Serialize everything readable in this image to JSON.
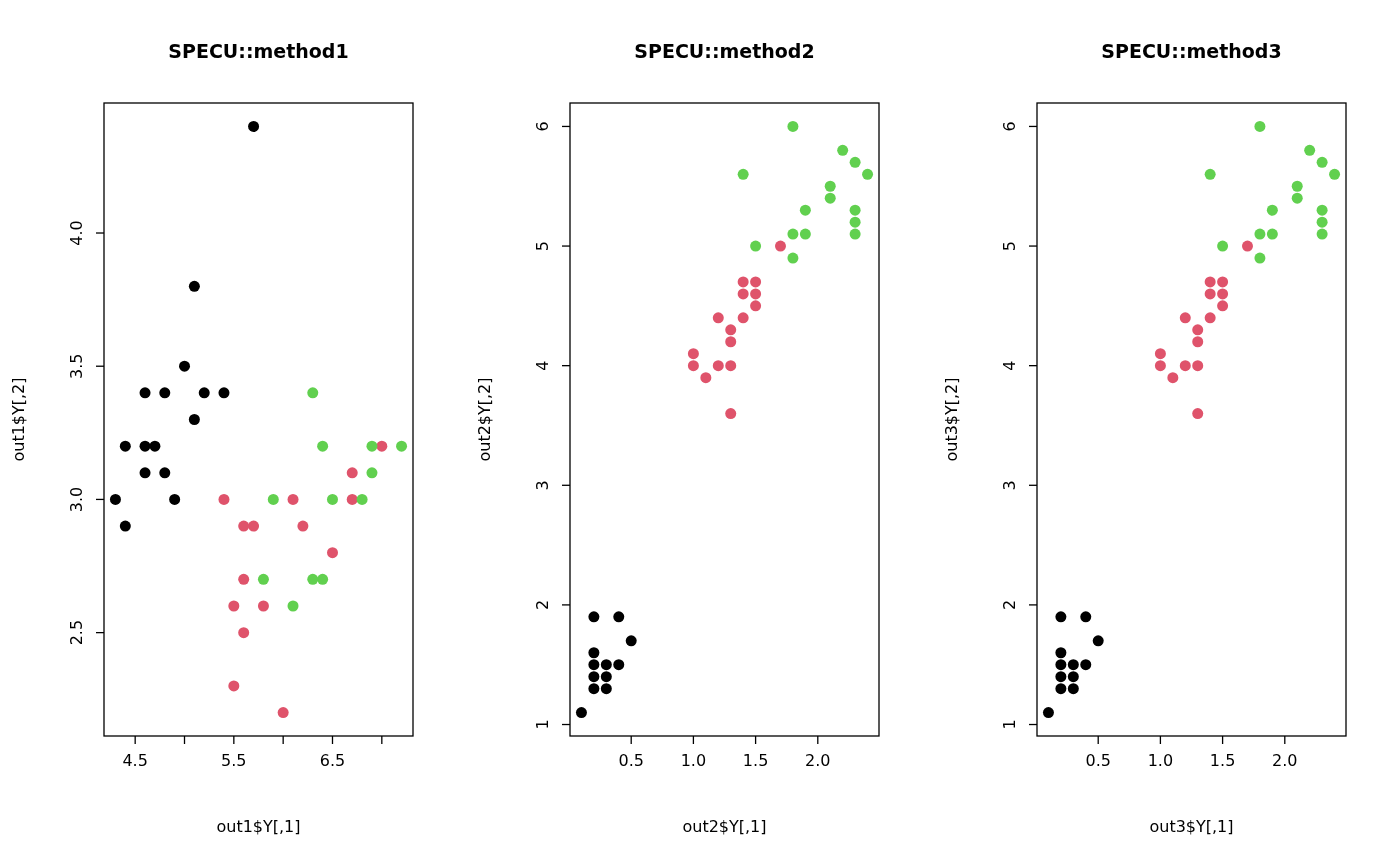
{
  "chart_data": [
    {
      "type": "scatter",
      "title": "SPECU::method1",
      "xlabel": "out1$Y[,1]",
      "ylabel": "out1$Y[,2]",
      "marker": "circle",
      "xlim": [
        4.184,
        7.316
      ],
      "ylim": [
        2.112,
        4.488
      ],
      "xticks": [
        4.5,
        {
          "value": 5.0,
          "label": null
        },
        5.5,
        {
          "value": 6.0,
          "label": null
        },
        6.5,
        {
          "value": 7.0,
          "label": null
        }
      ],
      "yticks": [
        2.5,
        {
          "value": 3,
          "label": "3.0"
        },
        3.5,
        {
          "value": 4,
          "label": "4.0"
        }
      ],
      "series": [
        {
          "color": "#000000",
          "x": [
            4.3,
            4.4,
            4.4,
            4.6,
            4.6,
            4.7,
            4.6,
            4.8,
            4.8,
            4.9,
            5.0,
            5.1,
            5.1,
            5.2,
            5.4,
            5.7
          ],
          "values": [
            3.0,
            3.2,
            2.9,
            3.4,
            3.2,
            3.2,
            3.1,
            3.4,
            3.1,
            3.0,
            3.5,
            3.8,
            3.3,
            3.4,
            3.4,
            4.4
          ]
        },
        {
          "color": "#df536b",
          "x": [
            5.4,
            5.6,
            5.7,
            5.6,
            5.5,
            5.8,
            5.6,
            5.5,
            6.0,
            6.1,
            6.2,
            6.5,
            6.7,
            6.7,
            7.0
          ],
          "values": [
            3.0,
            2.9,
            2.9,
            2.7,
            2.6,
            2.6,
            2.5,
            2.3,
            2.2,
            3.0,
            2.9,
            2.8,
            3.1,
            3.0,
            3.2
          ]
        },
        {
          "color": "#61d04f",
          "x": [
            5.8,
            5.9,
            6.1,
            6.3,
            6.3,
            6.4,
            6.4,
            6.5,
            6.8,
            6.9,
            6.9,
            7.2
          ],
          "values": [
            2.7,
            3.0,
            2.6,
            3.4,
            2.7,
            2.7,
            3.2,
            3.0,
            3.0,
            3.2,
            3.1,
            3.2
          ]
        }
      ]
    },
    {
      "type": "scatter",
      "title": "SPECU::method2",
      "xlabel": "out2$Y[,1]",
      "ylabel": "out2$Y[,2]",
      "marker": "circle",
      "xlim": [
        0.008,
        2.492
      ],
      "ylim": [
        0.904,
        6.196
      ],
      "xticks": [
        0.5,
        {
          "value": 1,
          "label": "1.0"
        },
        1.5,
        {
          "value": 2,
          "label": "2.0"
        }
      ],
      "yticks": [
        1,
        2,
        3,
        4,
        5,
        6
      ],
      "series": [
        {
          "color": "#000000",
          "x": [
            0.1,
            0.2,
            0.4,
            0.5,
            0.2,
            0.2,
            0.3,
            0.4,
            0.2,
            0.3,
            0.2,
            0.3
          ],
          "values": [
            1.1,
            1.9,
            1.9,
            1.7,
            1.6,
            1.5,
            1.5,
            1.5,
            1.4,
            1.4,
            1.3,
            1.3
          ]
        },
        {
          "color": "#df536b",
          "x": [
            1.0,
            1.0,
            1.1,
            1.2,
            1.2,
            1.3,
            1.3,
            1.3,
            1.3,
            1.4,
            1.4,
            1.4,
            1.5,
            1.5,
            1.5,
            1.7
          ],
          "values": [
            4.1,
            4.0,
            3.9,
            4.4,
            4.0,
            4.3,
            4.2,
            4.0,
            3.6,
            4.7,
            4.6,
            4.4,
            4.7,
            4.6,
            4.5,
            5.0
          ]
        },
        {
          "color": "#61d04f",
          "x": [
            1.4,
            1.5,
            1.8,
            1.8,
            1.8,
            1.9,
            1.9,
            2.1,
            2.1,
            2.2,
            2.3,
            2.3,
            2.3,
            2.3,
            2.4
          ],
          "values": [
            5.6,
            5.0,
            6.0,
            5.1,
            4.9,
            5.3,
            5.1,
            5.5,
            5.4,
            5.8,
            5.7,
            5.3,
            5.2,
            5.1,
            5.6
          ]
        }
      ]
    },
    {
      "type": "scatter",
      "title": "SPECU::method3",
      "xlabel": "out3$Y[,1]",
      "ylabel": "out3$Y[,2]",
      "marker": "circle",
      "xlim": [
        0.008,
        2.492
      ],
      "ylim": [
        0.904,
        6.196
      ],
      "xticks": [
        0.5,
        {
          "value": 1,
          "label": "1.0"
        },
        1.5,
        {
          "value": 2,
          "label": "2.0"
        }
      ],
      "yticks": [
        1,
        2,
        3,
        4,
        5,
        6
      ],
      "series": [
        {
          "color": "#000000",
          "x": [
            0.1,
            0.2,
            0.4,
            0.5,
            0.2,
            0.2,
            0.3,
            0.4,
            0.2,
            0.3,
            0.2,
            0.3
          ],
          "values": [
            1.1,
            1.9,
            1.9,
            1.7,
            1.6,
            1.5,
            1.5,
            1.5,
            1.4,
            1.4,
            1.3,
            1.3
          ]
        },
        {
          "color": "#df536b",
          "x": [
            1.0,
            1.0,
            1.1,
            1.2,
            1.2,
            1.3,
            1.3,
            1.3,
            1.3,
            1.4,
            1.4,
            1.4,
            1.5,
            1.5,
            1.5,
            1.7
          ],
          "values": [
            4.1,
            4.0,
            3.9,
            4.4,
            4.0,
            4.3,
            4.2,
            4.0,
            3.6,
            4.7,
            4.6,
            4.4,
            4.7,
            4.6,
            4.5,
            5.0
          ]
        },
        {
          "color": "#61d04f",
          "x": [
            1.4,
            1.5,
            1.8,
            1.8,
            1.8,
            1.9,
            1.9,
            2.1,
            2.1,
            2.2,
            2.3,
            2.3,
            2.3,
            2.3,
            2.4
          ],
          "values": [
            5.6,
            5.0,
            6.0,
            5.1,
            4.9,
            5.3,
            5.1,
            5.5,
            5.4,
            5.8,
            5.7,
            5.3,
            5.2,
            5.1,
            5.6
          ]
        }
      ]
    }
  ]
}
